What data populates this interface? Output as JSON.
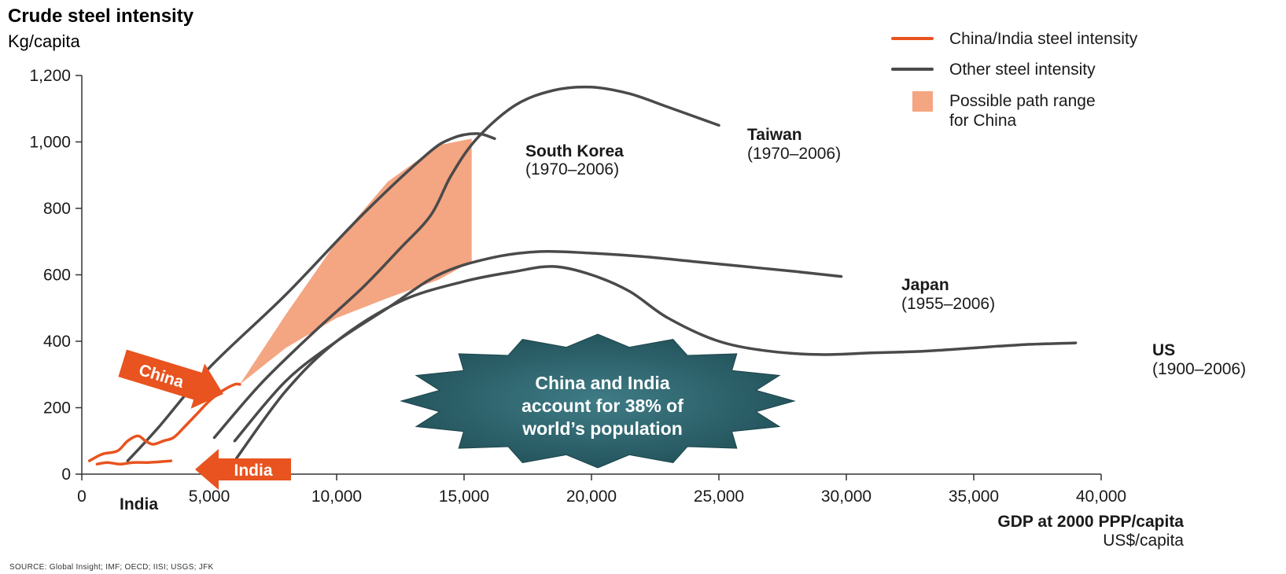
{
  "chart_data": {
    "type": "line",
    "title": "Crude steel intensity",
    "ylabel": "Kg/capita",
    "xlabel": "GDP at 2000 PPP/capita",
    "xunit": "US$/capita",
    "xlim": [
      0,
      40000
    ],
    "ylim": [
      0,
      1200
    ],
    "x_ticks": [
      0,
      5000,
      10000,
      15000,
      20000,
      25000,
      30000,
      35000,
      40000
    ],
    "x_tick_labels": [
      "0",
      "5,000",
      "10,000",
      "15,000",
      "20,000",
      "25,000",
      "30,000",
      "35,000",
      "40,000"
    ],
    "y_ticks": [
      0,
      200,
      400,
      600,
      800,
      1000,
      1200
    ],
    "y_tick_labels": [
      "0",
      "200",
      "400",
      "600",
      "800",
      "1,000",
      "1,200"
    ],
    "grid": false,
    "legend_position": "top-right",
    "legend": [
      {
        "label": "China/India steel intensity",
        "kind": "line",
        "color": "#e8531f"
      },
      {
        "label": "Other steel intensity",
        "kind": "line",
        "color": "#4a4a4a"
      },
      {
        "label": "Possible path range for China",
        "kind": "area",
        "color": "#f4a582"
      }
    ],
    "series": [
      {
        "name": "South Korea",
        "period": "(1970–2006)",
        "color": "#4a4a4a",
        "x": [
          1800,
          3000,
          5000,
          8000,
          11000,
          13500,
          14500,
          15500,
          16200
        ],
        "y": [
          40,
          140,
          320,
          540,
          780,
          960,
          1010,
          1025,
          1010
        ]
      },
      {
        "name": "Taiwan",
        "period": "(1970–2006)",
        "color": "#4a4a4a",
        "x": [
          5200,
          7000,
          9000,
          11000,
          12500,
          13700,
          14500,
          15500,
          17000,
          18500,
          20000,
          21500,
          23000,
          25000
        ],
        "y": [
          110,
          270,
          420,
          560,
          680,
          780,
          900,
          1010,
          1110,
          1155,
          1165,
          1145,
          1105,
          1050
        ]
      },
      {
        "name": "Japan",
        "period": "(1955–2006)",
        "color": "#4a4a4a",
        "x": [
          6000,
          8000,
          10000,
          12000,
          14000,
          16000,
          18000,
          20000,
          22000,
          24000,
          26000,
          28000,
          29800
        ],
        "y": [
          100,
          280,
          400,
          500,
          600,
          650,
          670,
          665,
          655,
          640,
          625,
          610,
          595
        ]
      },
      {
        "name": "US",
        "period": "(1900–2006)",
        "color": "#4a4a4a",
        "x": [
          6000,
          8000,
          10000,
          12500,
          15000,
          17000,
          18500,
          20000,
          21500,
          23000,
          25000,
          27000,
          29000,
          31000,
          33000,
          35000,
          37000,
          39000
        ],
        "y": [
          40,
          250,
          400,
          520,
          580,
          610,
          625,
          600,
          550,
          470,
          400,
          370,
          360,
          365,
          370,
          380,
          390,
          395
        ]
      },
      {
        "name": "China",
        "color": "#e8531f",
        "x": [
          300,
          800,
          1400,
          1800,
          2200,
          2500,
          2800,
          3200,
          3600,
          4000,
          4500,
          5000,
          5500,
          6000,
          6200
        ],
        "y": [
          40,
          60,
          70,
          100,
          115,
          100,
          90,
          100,
          110,
          140,
          180,
          220,
          250,
          270,
          270
        ]
      },
      {
        "name": "India",
        "color": "#e8531f",
        "x": [
          600,
          1000,
          1500,
          2000,
          2600,
          3200,
          3500
        ],
        "y": [
          30,
          35,
          30,
          35,
          35,
          38,
          40
        ]
      }
    ],
    "range_area": {
      "label": "Possible path range for China",
      "color": "#f4a582",
      "upper": {
        "x": [
          6200,
          8000,
          10000,
          12000,
          14000,
          15300
        ],
        "y": [
          270,
          480,
          700,
          880,
          990,
          1010
        ]
      },
      "lower": {
        "x": [
          6200,
          8000,
          10000,
          12000,
          14000,
          15300
        ],
        "y": [
          270,
          380,
          470,
          530,
          585,
          640
        ]
      }
    },
    "annotations": [
      {
        "text": "South Korea",
        "sub": "(1970–2006)"
      },
      {
        "text": "Taiwan",
        "sub": "(1970–2006)"
      },
      {
        "text": "Japan",
        "sub": "(1955–2006)"
      },
      {
        "text": "US",
        "sub": "(1900–2006)"
      },
      {
        "text": "India"
      },
      {
        "text": "China"
      },
      {
        "text": "India"
      }
    ],
    "callout": {
      "lines": [
        "China and India",
        "account for 38% of",
        "world’s population"
      ],
      "color": "#2f6670"
    },
    "source": "SOURCE: Global Insight; IMF; OECD; IISI; USGS; JFK"
  }
}
